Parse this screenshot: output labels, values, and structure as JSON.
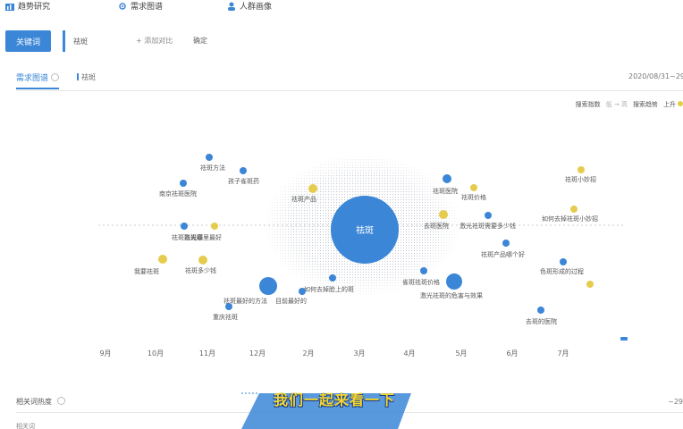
{
  "nav": {
    "items": [
      {
        "label": "趋势研究",
        "icon": "bar-chart-icon"
      },
      {
        "label": "需求图谱",
        "icon": "radar-icon"
      },
      {
        "label": "人群画像",
        "icon": "user-icon"
      }
    ]
  },
  "toolbar": {
    "keyword_button": "关键词",
    "keyword_value": "祛斑",
    "add_compare": "添加对比",
    "confirm": "确定"
  },
  "tabs": {
    "active": "需求图谱",
    "keyword": "祛斑",
    "date_range": "2020/08/31~29"
  },
  "legend": {
    "search_index_label": "搜索指数",
    "search_index_range": "低 → 高",
    "trend_label": "搜索趋势",
    "trend_rise": "上升"
  },
  "colors": {
    "accent": "#3b86d6",
    "rise": "#e6cc4d",
    "falling_node": "#3b86d6",
    "cloud": "#c7ccd4"
  },
  "graph": {
    "center": {
      "label": "祛斑",
      "color": "#3b86d6"
    },
    "nodes": [
      {
        "label": "祛斑方法",
        "color": "#3b86d6"
      },
      {
        "label": "孩子雀斑药",
        "color": "#3b86d6"
      },
      {
        "label": "南京祛斑医院",
        "color": "#3b86d6"
      },
      {
        "label": "祛斑产品",
        "color": "#e6cc4d"
      },
      {
        "label": "祛斑医院",
        "color": "#3b86d6"
      },
      {
        "label": "祛斑价格",
        "color": "#e6cc4d"
      },
      {
        "label": "去斑医院",
        "color": "#e6cc4d"
      },
      {
        "label": "如何去掉祛斑小妙招",
        "color": "#e6cc4d"
      },
      {
        "label": "祛斑激光哪里最好",
        "color": "#3b86d6"
      },
      {
        "label": "祛斑最",
        "color": "#e6cc4d"
      },
      {
        "label": "激光祛斑需要多少钱",
        "color": "#3b86d6"
      },
      {
        "label": "祛斑产品哪个好",
        "color": "#3b86d6"
      },
      {
        "label": "我要祛斑",
        "color": "#e6cc4d"
      },
      {
        "label": "祛斑多少钱",
        "color": "#e6cc4d"
      },
      {
        "label": "色斑形成的过程",
        "color": "#3b86d6"
      },
      {
        "label": "祛斑最好的方法",
        "color": "#3b86d6"
      },
      {
        "label": "如何去掉脸上的斑",
        "color": "#3b86d6"
      },
      {
        "label": "雀斑祛斑价格",
        "color": "#3b86d6"
      },
      {
        "label": "目前最好的",
        "color": "#3b86d6"
      },
      {
        "label": "激光祛斑的危害与效果",
        "color": "#3b86d6"
      },
      {
        "label": "祛斑小妙招",
        "color": "#e6cc4d"
      },
      {
        "label": "重庆祛斑",
        "color": "#3b86d6"
      },
      {
        "label": "去斑的医院",
        "color": "#3b86d6"
      }
    ]
  },
  "timeline": {
    "months": [
      "9月",
      "10月",
      "11月",
      "12月",
      "2月",
      "3月",
      "4月",
      "5月",
      "6月",
      "7月"
    ]
  },
  "subtitle": "我们一起来看一下",
  "section2": {
    "title": "相关词热度",
    "date_range": "~29",
    "sub": "相关词"
  }
}
